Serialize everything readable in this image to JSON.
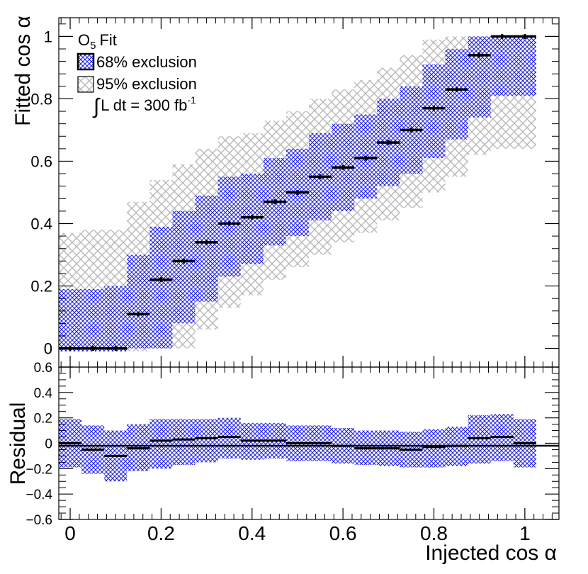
{
  "chart_data": [
    {
      "type": "band",
      "panel": "main",
      "ylabel": "Fitted cos α",
      "xlim": [
        -0.025,
        1.075
      ],
      "ylim": [
        -0.06,
        1.06
      ],
      "x_ticks": [
        0,
        0.2,
        0.4,
        0.6,
        0.8,
        1
      ],
      "y_ticks": [
        0,
        0.2,
        0.4,
        0.6,
        0.8,
        1
      ],
      "y_tick_labels": [
        "0",
        "0.2",
        "0.4",
        "0.6",
        "0.8",
        "1"
      ],
      "legend": {
        "position": "top-left",
        "entry_fit": "Fit",
        "entry_fit_symbol": "O",
        "entry_fit_subscript": "5",
        "entry_68": "68% exclusion",
        "entry_95": "95% exclusion",
        "lumi_integral": "∫",
        "lumi_text": "L dt = 300 fb",
        "lumi_superscript": "-1"
      },
      "bins": [
        {
          "x": 0.0,
          "y": 0.0,
          "b68": [
            -0.01,
            0.19
          ],
          "b95": [
            -0.01,
            0.37
          ]
        },
        {
          "x": 0.05,
          "y": 0.0,
          "b68": [
            -0.01,
            0.19
          ],
          "b95": [
            -0.01,
            0.38
          ]
        },
        {
          "x": 0.1,
          "y": 0.0,
          "b68": [
            -0.01,
            0.2
          ],
          "b95": [
            -0.01,
            0.38
          ]
        },
        {
          "x": 0.15,
          "y": 0.11,
          "b68": [
            0.0,
            0.3
          ],
          "b95": [
            -0.01,
            0.47
          ]
        },
        {
          "x": 0.2,
          "y": 0.22,
          "b68": [
            0.0,
            0.39
          ],
          "b95": [
            0.0,
            0.54
          ]
        },
        {
          "x": 0.25,
          "y": 0.28,
          "b68": [
            0.08,
            0.44
          ],
          "b95": [
            0.0,
            0.59
          ]
        },
        {
          "x": 0.3,
          "y": 0.34,
          "b68": [
            0.15,
            0.49
          ],
          "b95": [
            0.06,
            0.64
          ]
        },
        {
          "x": 0.35,
          "y": 0.4,
          "b68": [
            0.23,
            0.55
          ],
          "b95": [
            0.13,
            0.68
          ]
        },
        {
          "x": 0.4,
          "y": 0.42,
          "b68": [
            0.27,
            0.56
          ],
          "b95": [
            0.17,
            0.69
          ]
        },
        {
          "x": 0.45,
          "y": 0.47,
          "b68": [
            0.33,
            0.61
          ],
          "b95": [
            0.22,
            0.73
          ]
        },
        {
          "x": 0.5,
          "y": 0.5,
          "b68": [
            0.36,
            0.64
          ],
          "b95": [
            0.26,
            0.76
          ]
        },
        {
          "x": 0.55,
          "y": 0.55,
          "b68": [
            0.41,
            0.69
          ],
          "b95": [
            0.3,
            0.8
          ]
        },
        {
          "x": 0.6,
          "y": 0.58,
          "b68": [
            0.44,
            0.72
          ],
          "b95": [
            0.34,
            0.83
          ]
        },
        {
          "x": 0.65,
          "y": 0.61,
          "b68": [
            0.48,
            0.75
          ],
          "b95": [
            0.37,
            0.86
          ]
        },
        {
          "x": 0.7,
          "y": 0.66,
          "b68": [
            0.52,
            0.8
          ],
          "b95": [
            0.41,
            0.9
          ]
        },
        {
          "x": 0.75,
          "y": 0.7,
          "b68": [
            0.56,
            0.84
          ],
          "b95": [
            0.45,
            0.94
          ]
        },
        {
          "x": 0.8,
          "y": 0.77,
          "b68": [
            0.61,
            0.91
          ],
          "b95": [
            0.5,
            0.99
          ]
        },
        {
          "x": 0.85,
          "y": 0.83,
          "b68": [
            0.67,
            0.96
          ],
          "b95": [
            0.55,
            1.0
          ]
        },
        {
          "x": 0.9,
          "y": 0.94,
          "b68": [
            0.74,
            1.0
          ],
          "b95": [
            0.62,
            1.0
          ]
        },
        {
          "x": 0.95,
          "y": 1.0,
          "b68": [
            0.81,
            1.0
          ],
          "b95": [
            0.64,
            1.0
          ]
        },
        {
          "x": 1.0,
          "y": 1.0,
          "b68": [
            0.81,
            1.0
          ],
          "b95": [
            0.64,
            1.0
          ]
        }
      ]
    },
    {
      "type": "band",
      "panel": "residual",
      "xlabel": "Injected cos α",
      "ylabel": "Residual",
      "xlim": [
        -0.025,
        1.075
      ],
      "ylim": [
        -0.6,
        0.6
      ],
      "x_ticks": [
        0,
        0.2,
        0.4,
        0.6,
        0.8,
        1
      ],
      "x_tick_labels": [
        "0",
        "0.2",
        "0.4",
        "0.6",
        "0.8",
        "1"
      ],
      "y_ticks": [
        -0.6,
        -0.4,
        -0.2,
        0,
        0.2,
        0.4,
        0.6
      ],
      "y_tick_labels": [
        "−0.6",
        "−0.4",
        "−0.2",
        "0",
        "0.2",
        "0.4",
        "0.6"
      ],
      "bins": [
        {
          "x": 0.0,
          "y": 0.0,
          "b68": [
            -0.19,
            0.19
          ]
        },
        {
          "x": 0.05,
          "y": -0.05,
          "b68": [
            -0.24,
            0.14
          ]
        },
        {
          "x": 0.1,
          "y": -0.1,
          "b68": [
            -0.3,
            0.1
          ]
        },
        {
          "x": 0.15,
          "y": -0.04,
          "b68": [
            -0.22,
            0.15
          ]
        },
        {
          "x": 0.2,
          "y": 0.02,
          "b68": [
            -0.2,
            0.19
          ]
        },
        {
          "x": 0.25,
          "y": 0.03,
          "b68": [
            -0.17,
            0.19
          ]
        },
        {
          "x": 0.3,
          "y": 0.04,
          "b68": [
            -0.15,
            0.19
          ]
        },
        {
          "x": 0.35,
          "y": 0.05,
          "b68": [
            -0.12,
            0.2
          ]
        },
        {
          "x": 0.4,
          "y": 0.02,
          "b68": [
            -0.13,
            0.16
          ]
        },
        {
          "x": 0.45,
          "y": 0.02,
          "b68": [
            -0.12,
            0.16
          ]
        },
        {
          "x": 0.5,
          "y": 0.0,
          "b68": [
            -0.14,
            0.14
          ]
        },
        {
          "x": 0.55,
          "y": 0.0,
          "b68": [
            -0.14,
            0.14
          ]
        },
        {
          "x": 0.6,
          "y": -0.02,
          "b68": [
            -0.16,
            0.12
          ]
        },
        {
          "x": 0.65,
          "y": -0.04,
          "b68": [
            -0.17,
            0.1
          ]
        },
        {
          "x": 0.7,
          "y": -0.04,
          "b68": [
            -0.18,
            0.1
          ]
        },
        {
          "x": 0.75,
          "y": -0.05,
          "b68": [
            -0.19,
            0.09
          ]
        },
        {
          "x": 0.8,
          "y": -0.03,
          "b68": [
            -0.19,
            0.11
          ]
        },
        {
          "x": 0.85,
          "y": -0.02,
          "b68": [
            -0.18,
            0.13
          ]
        },
        {
          "x": 0.9,
          "y": 0.04,
          "b68": [
            -0.16,
            0.22
          ]
        },
        {
          "x": 0.95,
          "y": 0.05,
          "b68": [
            -0.14,
            0.23
          ]
        },
        {
          "x": 1.0,
          "y": 0.0,
          "b68": [
            -0.19,
            0.19
          ]
        }
      ]
    }
  ]
}
